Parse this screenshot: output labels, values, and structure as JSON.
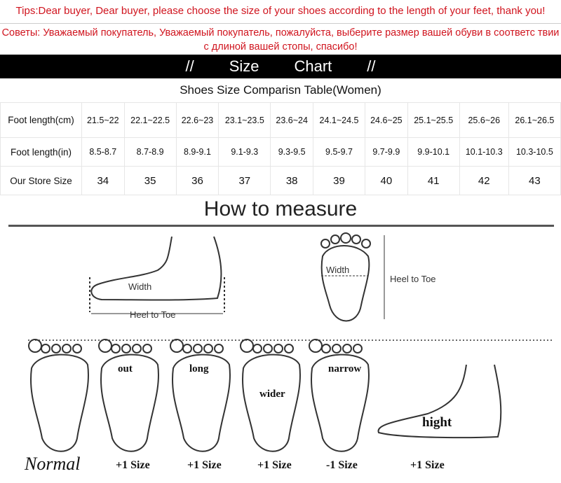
{
  "tips_en": "Tips:Dear buyer, Dear buyer, please choose the size of your shoes according to the length of your feet, thank you!",
  "tips_ru": "Советы: Уважаемый покупатель, Уважаемый покупатель, пожалуйста, выберите размер вашей обуви в соответс твии с длиной вашей стопы, спасибо!",
  "banner": {
    "left": "//",
    "word1": "Size",
    "word2": "Chart",
    "right": "//"
  },
  "table_title": "Shoes Size Comparisn Table(Women)",
  "table": {
    "rows": [
      {
        "header": "Foot length(cm)",
        "cells": [
          "21.5~22",
          "22.1~22.5",
          "22.6~23",
          "23.1~23.5",
          "23.6~24",
          "24.1~24.5",
          "24.6~25",
          "25.1~25.5",
          "25.6~26",
          "26.1~26.5"
        ]
      },
      {
        "header": "Foot length(in)",
        "cells": [
          "8.5-8.7",
          "8.7-8.9",
          "8.9-9.1",
          "9.1-9.3",
          "9.3-9.5",
          "9.5-9.7",
          "9.7-9.9",
          "9.9-10.1",
          "10.1-10.3",
          "10.3-10.5"
        ]
      },
      {
        "header": "Our Store Size",
        "cells": [
          "34",
          "35",
          "36",
          "37",
          "38",
          "39",
          "40",
          "41",
          "42",
          "43"
        ]
      }
    ]
  },
  "how_to": "How to measure",
  "diagram": {
    "width": "Width",
    "heel_to_toe": "Heel to Toe"
  },
  "feet": [
    {
      "tag": "",
      "size": "Normal"
    },
    {
      "tag": "out",
      "size": "+1 Size"
    },
    {
      "tag": "long",
      "size": "+1 Size"
    },
    {
      "tag": "wider",
      "size": "+1 Size"
    },
    {
      "tag": "narrow",
      "size": "-1 Size"
    },
    {
      "tag": "hight",
      "size": "+1 Size"
    }
  ],
  "colors": {
    "tips": "#d0141e",
    "banner": "#000000"
  }
}
